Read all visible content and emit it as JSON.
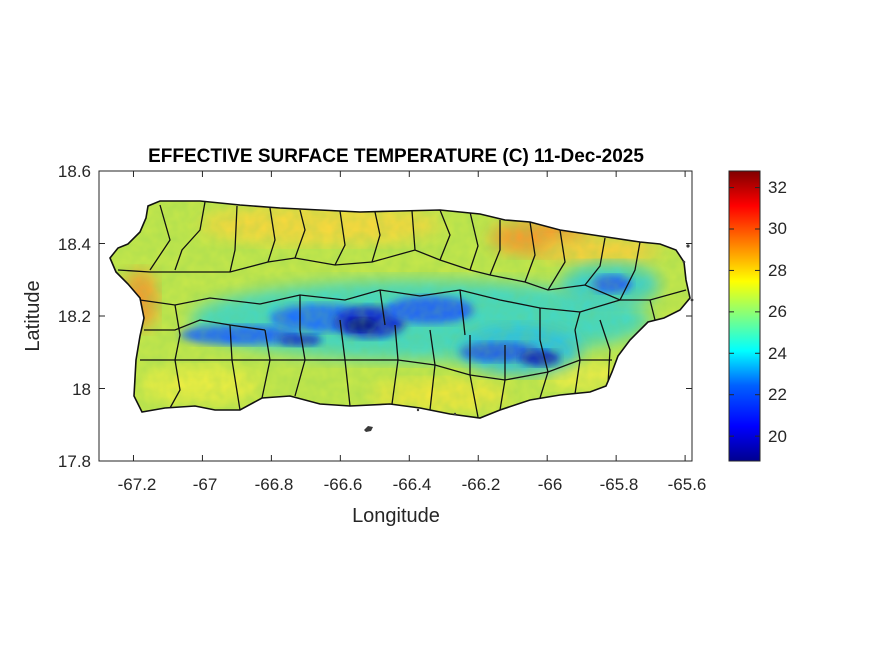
{
  "title": "EFFECTIVE SURFACE TEMPERATURE (C) 11-Dec-2025",
  "map": {
    "xlabel": "Longitude",
    "ylabel": "Latitude",
    "xlim": [
      -67.3,
      -65.58
    ],
    "ylim": [
      17.8,
      18.6
    ],
    "xticks": [
      "-67.2",
      "-67",
      "-66.8",
      "-66.6",
      "-66.4",
      "-66.2",
      "-66",
      "-65.8",
      "-65.6"
    ],
    "yticks": [
      "18.6",
      "18.4",
      "18.2",
      "18",
      "17.8"
    ],
    "colormap": "jet",
    "municipality_borders": "#000000"
  },
  "colorbar": {
    "range": [
      18.8,
      32.8
    ],
    "ticks": [
      "32",
      "30",
      "28",
      "26",
      "24",
      "22",
      "20"
    ],
    "colors": [
      "#00008f",
      "#0000ff",
      "#0080ff",
      "#00ffff",
      "#80ff80",
      "#ffff00",
      "#ff8000",
      "#ff0000",
      "#800000"
    ]
  }
}
